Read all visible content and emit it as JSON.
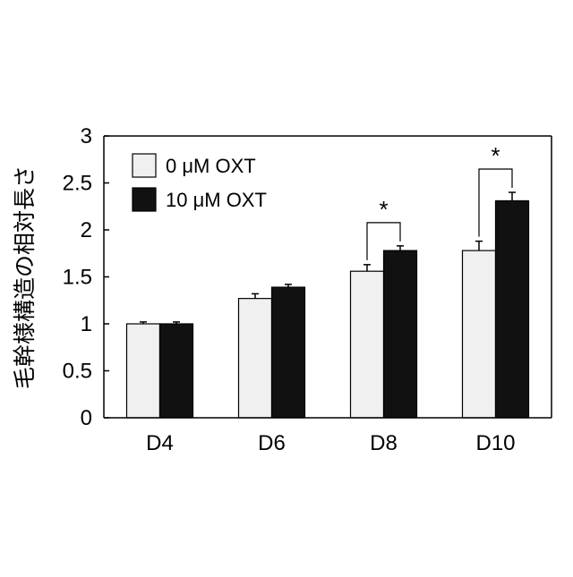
{
  "chart_data": {
    "type": "bar",
    "title": "",
    "xlabel": "",
    "ylabel": "毛幹様構造の相対長さ",
    "ylim": [
      0,
      3
    ],
    "yticks": [
      "0",
      "0.5",
      "1",
      "1.5",
      "2",
      "2.5",
      "3"
    ],
    "ytick_values": [
      0,
      0.5,
      1,
      1.5,
      2,
      2.5,
      3
    ],
    "categories": [
      "D4",
      "D6",
      "D8",
      "D10"
    ],
    "legend_position": "top-left",
    "grid": false,
    "series": [
      {
        "name": "0 μM OXT",
        "color": "#f0f0f0",
        "values": [
          1.0,
          1.27,
          1.56,
          1.78
        ],
        "errors": [
          0.02,
          0.05,
          0.07,
          0.1
        ]
      },
      {
        "name": "10 μM OXT",
        "color": "#111111",
        "values": [
          1.0,
          1.39,
          1.78,
          2.31
        ],
        "errors": [
          0.02,
          0.03,
          0.05,
          0.09
        ]
      }
    ],
    "significance": [
      {
        "category": "D8",
        "label": "*"
      },
      {
        "category": "D10",
        "label": "*"
      }
    ]
  }
}
